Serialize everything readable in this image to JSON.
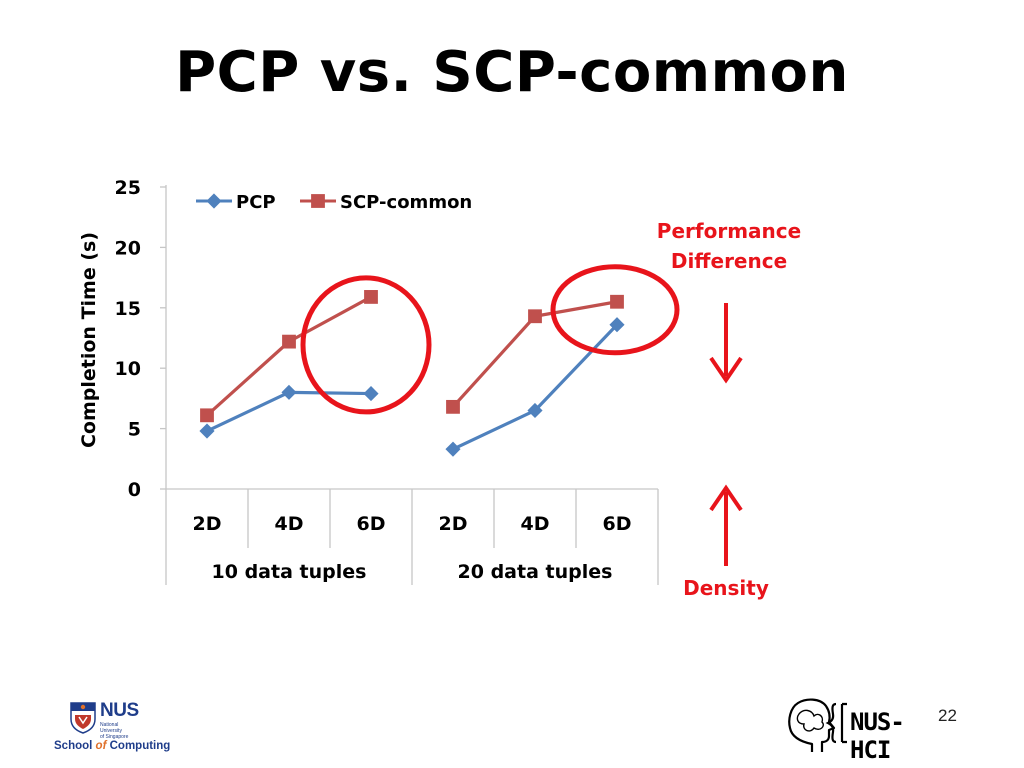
{
  "slide": {
    "title": "PCP vs. SCP-common",
    "page_number": "22"
  },
  "annotations": {
    "top": [
      "Performance",
      "Difference"
    ],
    "bottom": "Density"
  },
  "logos": {
    "nus_word": "NUS",
    "nus_sub": [
      "National University",
      "of Singapore"
    ],
    "school_prefix": "School",
    "school_of": "of",
    "school_suffix": "Computing",
    "hci_word": "NUS-HCI"
  },
  "colors": {
    "pcp": "#4f81bd",
    "scp": "#c0504d",
    "annotation": "#e8141b",
    "grid": "#c6c6c6"
  },
  "chart_data": {
    "type": "line",
    "title": "",
    "ylabel": "Completion Time (s)",
    "xlabel": "",
    "ylim": [
      0,
      25
    ],
    "yticks": [
      0,
      5,
      10,
      15,
      20,
      25
    ],
    "legend_position": "top-left",
    "groups": [
      {
        "label": "10 data tuples",
        "categories": [
          "2D",
          "4D",
          "6D"
        ]
      },
      {
        "label": "20 data tuples",
        "categories": [
          "2D",
          "4D",
          "6D"
        ]
      }
    ],
    "series": [
      {
        "name": "PCP",
        "marker": "diamond",
        "values": [
          [
            4.8,
            8.0,
            7.9
          ],
          [
            3.3,
            6.5,
            13.6
          ]
        ]
      },
      {
        "name": "SCP-common",
        "marker": "square",
        "values": [
          [
            6.1,
            12.2,
            15.9
          ],
          [
            6.8,
            14.3,
            15.5
          ]
        ]
      }
    ],
    "highlights": [
      {
        "group": 0,
        "category": 2,
        "shape": "circle"
      },
      {
        "group": 1,
        "category": 2,
        "shape": "circle"
      }
    ]
  }
}
